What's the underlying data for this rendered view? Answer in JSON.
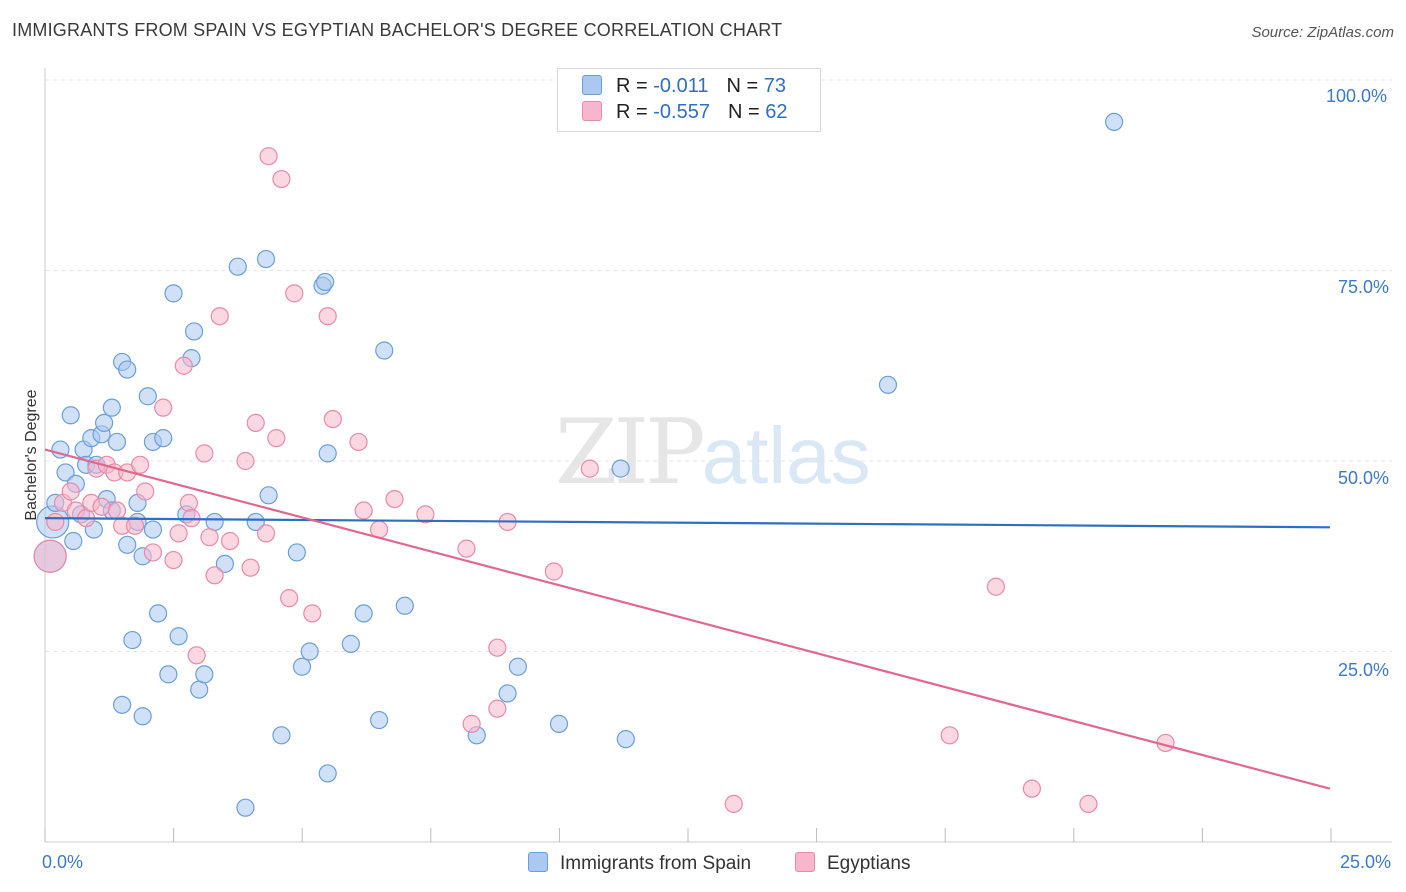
{
  "title": "IMMIGRANTS FROM SPAIN VS EGYPTIAN BACHELOR'S DEGREE CORRELATION CHART",
  "source": "Source: ZipAtlas.com",
  "watermark": {
    "zip": "ZIP",
    "atlas": "atlas"
  },
  "legend": {
    "rows": [
      {
        "r_label": "R = ",
        "r_value": "-0.011",
        "n_label": "N = ",
        "n_value": "73",
        "color": "#aac8f0"
      },
      {
        "r_label": "R = ",
        "r_value": "-0.557",
        "n_label": "N = ",
        "n_value": "62",
        "color": "#f7b6cb"
      }
    ]
  },
  "colors": {
    "blue_fill": "#aac8f0",
    "blue_stroke": "#6a9fd8",
    "blue_line": "#2f6fc0",
    "pink_fill": "#f7b6cb",
    "pink_stroke": "#e88aa8",
    "pink_line": "#e0688f",
    "grid": "#e4e4e4",
    "tick_text": "#3d79c6"
  },
  "chart_data": {
    "type": "scatter",
    "title": "IMMIGRANTS FROM SPAIN VS EGYPTIAN BACHELOR'S DEGREE CORRELATION CHART",
    "xlabel": "",
    "ylabel": "Bachelor's Degree",
    "xlim": [
      0,
      25
    ],
    "ylim": [
      0,
      100
    ],
    "x_ticks": [
      "0.0%",
      "25.0%"
    ],
    "y_ticks": [
      "25.0%",
      "50.0%",
      "75.0%",
      "100.0%"
    ],
    "y_tick_values": [
      25,
      50,
      75,
      100
    ],
    "grid": true,
    "legend_position": "top-center",
    "series": [
      {
        "name": "Immigrants from Spain",
        "color": "#aac8f0",
        "trend": {
          "x": [
            0,
            25
          ],
          "y": [
            42.5,
            41.3
          ]
        },
        "points": [
          {
            "x": 0.1,
            "y": 37.5,
            "big": true
          },
          {
            "x": 0.15,
            "y": 42,
            "big": true
          },
          {
            "x": 0.2,
            "y": 44.5
          },
          {
            "x": 0.3,
            "y": 51.5
          },
          {
            "x": 0.4,
            "y": 48.5
          },
          {
            "x": 0.5,
            "y": 56
          },
          {
            "x": 0.55,
            "y": 39.5
          },
          {
            "x": 0.6,
            "y": 47
          },
          {
            "x": 0.7,
            "y": 43
          },
          {
            "x": 0.75,
            "y": 51.5
          },
          {
            "x": 0.8,
            "y": 49.5
          },
          {
            "x": 0.9,
            "y": 53
          },
          {
            "x": 0.95,
            "y": 41
          },
          {
            "x": 1.0,
            "y": 49.5
          },
          {
            "x": 1.1,
            "y": 53.5
          },
          {
            "x": 1.15,
            "y": 55
          },
          {
            "x": 1.2,
            "y": 45
          },
          {
            "x": 1.3,
            "y": 57
          },
          {
            "x": 1.3,
            "y": 43.5
          },
          {
            "x": 1.4,
            "y": 52.5
          },
          {
            "x": 1.5,
            "y": 18
          },
          {
            "x": 1.5,
            "y": 63
          },
          {
            "x": 1.6,
            "y": 62
          },
          {
            "x": 1.6,
            "y": 39
          },
          {
            "x": 1.7,
            "y": 26.5
          },
          {
            "x": 1.8,
            "y": 44.5
          },
          {
            "x": 1.8,
            "y": 42
          },
          {
            "x": 1.9,
            "y": 16.5
          },
          {
            "x": 1.9,
            "y": 37.5
          },
          {
            "x": 2.0,
            "y": 58.5
          },
          {
            "x": 2.1,
            "y": 52.5
          },
          {
            "x": 2.1,
            "y": 41
          },
          {
            "x": 2.2,
            "y": 30
          },
          {
            "x": 2.3,
            "y": 53
          },
          {
            "x": 2.4,
            "y": 22
          },
          {
            "x": 2.5,
            "y": 72
          },
          {
            "x": 2.6,
            "y": 27
          },
          {
            "x": 2.75,
            "y": 43
          },
          {
            "x": 2.85,
            "y": 63.5
          },
          {
            "x": 2.9,
            "y": 67
          },
          {
            "x": 3.0,
            "y": 20
          },
          {
            "x": 3.1,
            "y": 22
          },
          {
            "x": 3.3,
            "y": 42
          },
          {
            "x": 3.5,
            "y": 36.5
          },
          {
            "x": 3.75,
            "y": 75.5
          },
          {
            "x": 3.9,
            "y": 4.5
          },
          {
            "x": 4.1,
            "y": 42
          },
          {
            "x": 4.3,
            "y": 76.5
          },
          {
            "x": 4.35,
            "y": 45.5
          },
          {
            "x": 4.6,
            "y": 14
          },
          {
            "x": 4.9,
            "y": 38
          },
          {
            "x": 5.0,
            "y": 23
          },
          {
            "x": 5.15,
            "y": 25
          },
          {
            "x": 5.4,
            "y": 73
          },
          {
            "x": 5.45,
            "y": 73.5
          },
          {
            "x": 5.5,
            "y": 9
          },
          {
            "x": 5.5,
            "y": 51
          },
          {
            "x": 5.95,
            "y": 26
          },
          {
            "x": 6.2,
            "y": 30
          },
          {
            "x": 6.5,
            "y": 16
          },
          {
            "x": 6.6,
            "y": 64.5
          },
          {
            "x": 7.0,
            "y": 31
          },
          {
            "x": 8.4,
            "y": 14
          },
          {
            "x": 9.0,
            "y": 19.5
          },
          {
            "x": 9.2,
            "y": 23
          },
          {
            "x": 10.0,
            "y": 15.5
          },
          {
            "x": 11.2,
            "y": 49
          },
          {
            "x": 11.3,
            "y": 13.5
          },
          {
            "x": 16.4,
            "y": 60
          },
          {
            "x": 20.8,
            "y": 94.5
          }
        ]
      },
      {
        "name": "Egyptians",
        "color": "#f7b6cb",
        "trend": {
          "x": [
            0,
            25
          ],
          "y": [
            51.5,
            7
          ]
        },
        "points": [
          {
            "x": 0.1,
            "y": 37.5,
            "big": true
          },
          {
            "x": 0.2,
            "y": 42
          },
          {
            "x": 0.35,
            "y": 44.5
          },
          {
            "x": 0.5,
            "y": 46
          },
          {
            "x": 0.6,
            "y": 43.5
          },
          {
            "x": 0.8,
            "y": 42.5
          },
          {
            "x": 0.9,
            "y": 44.5
          },
          {
            "x": 1.0,
            "y": 49
          },
          {
            "x": 1.1,
            "y": 44
          },
          {
            "x": 1.2,
            "y": 49.5
          },
          {
            "x": 1.35,
            "y": 48.5
          },
          {
            "x": 1.4,
            "y": 43.5
          },
          {
            "x": 1.5,
            "y": 41.5
          },
          {
            "x": 1.6,
            "y": 48.5
          },
          {
            "x": 1.75,
            "y": 41.5
          },
          {
            "x": 1.85,
            "y": 49.5
          },
          {
            "x": 1.95,
            "y": 46
          },
          {
            "x": 2.1,
            "y": 38
          },
          {
            "x": 2.3,
            "y": 57
          },
          {
            "x": 2.5,
            "y": 37
          },
          {
            "x": 2.6,
            "y": 40.5
          },
          {
            "x": 2.7,
            "y": 62.5
          },
          {
            "x": 2.8,
            "y": 44.5
          },
          {
            "x": 2.85,
            "y": 42.5
          },
          {
            "x": 2.95,
            "y": 24.5
          },
          {
            "x": 3.1,
            "y": 51
          },
          {
            "x": 3.2,
            "y": 40
          },
          {
            "x": 3.3,
            "y": 35
          },
          {
            "x": 3.4,
            "y": 69
          },
          {
            "x": 3.6,
            "y": 39.5
          },
          {
            "x": 3.9,
            "y": 50
          },
          {
            "x": 4.0,
            "y": 36
          },
          {
            "x": 4.1,
            "y": 55
          },
          {
            "x": 4.3,
            "y": 40.5
          },
          {
            "x": 4.35,
            "y": 90
          },
          {
            "x": 4.5,
            "y": 53
          },
          {
            "x": 4.6,
            "y": 87
          },
          {
            "x": 4.75,
            "y": 32
          },
          {
            "x": 4.85,
            "y": 72
          },
          {
            "x": 5.2,
            "y": 30
          },
          {
            "x": 5.5,
            "y": 69
          },
          {
            "x": 5.6,
            "y": 55.5
          },
          {
            "x": 6.1,
            "y": 52.5
          },
          {
            "x": 6.2,
            "y": 43.5
          },
          {
            "x": 6.5,
            "y": 41
          },
          {
            "x": 6.8,
            "y": 45
          },
          {
            "x": 7.4,
            "y": 43
          },
          {
            "x": 8.2,
            "y": 38.5
          },
          {
            "x": 8.3,
            "y": 15.5
          },
          {
            "x": 8.8,
            "y": 25.5
          },
          {
            "x": 8.8,
            "y": 17.5
          },
          {
            "x": 9.0,
            "y": 42
          },
          {
            "x": 9.9,
            "y": 35.5
          },
          {
            "x": 10.6,
            "y": 49
          },
          {
            "x": 13.4,
            "y": 5
          },
          {
            "x": 17.6,
            "y": 14
          },
          {
            "x": 18.5,
            "y": 33.5
          },
          {
            "x": 19.2,
            "y": 7
          },
          {
            "x": 20.3,
            "y": 5
          },
          {
            "x": 21.8,
            "y": 13
          }
        ]
      }
    ]
  },
  "bottom_legend": [
    {
      "label": "Immigrants from Spain",
      "color": "#aac8f0"
    },
    {
      "label": "Egyptians",
      "color": "#f7b6cb"
    }
  ]
}
